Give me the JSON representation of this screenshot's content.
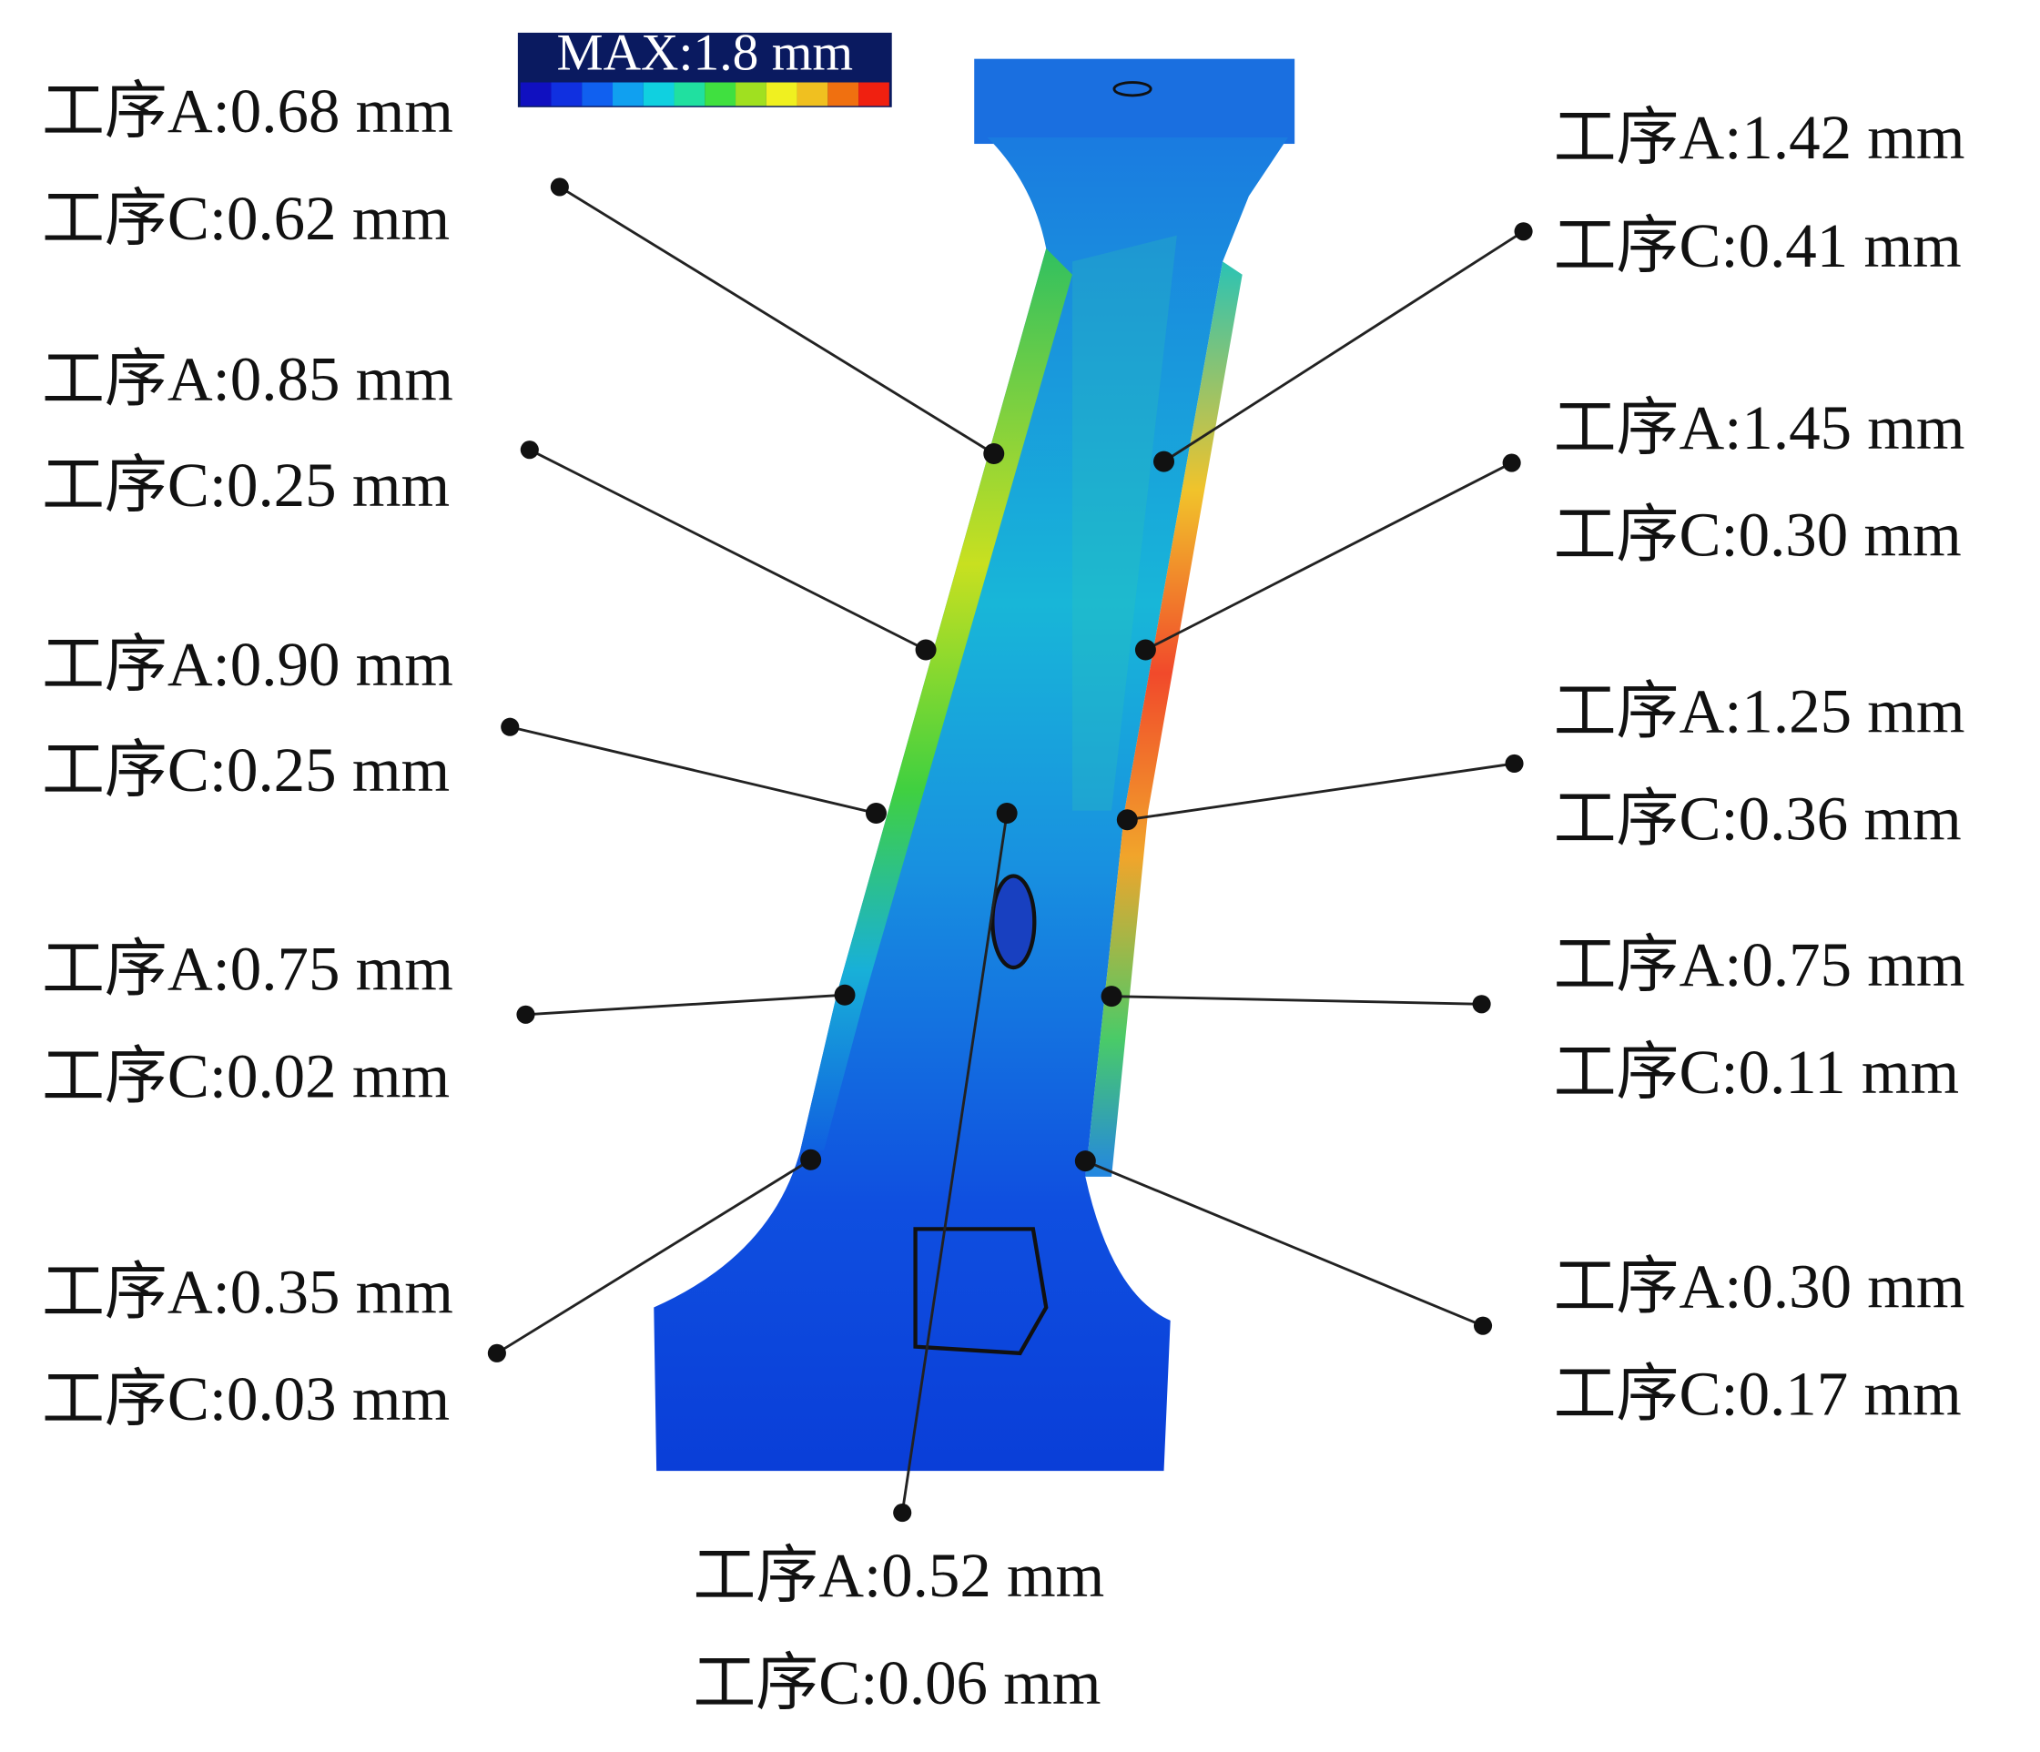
{
  "legend": {
    "title": "MAX:1.8 mm"
  },
  "annotations": [
    {
      "process_a": "工序A:0.68 mm",
      "process_c": "工序C:0.62 mm"
    },
    {
      "process_a": "工序A:0.85 mm",
      "process_c": "工序C:0.25 mm"
    },
    {
      "process_a": "工序A:0.90 mm",
      "process_c": "工序C:0.25 mm"
    },
    {
      "process_a": "工序A:0.75 mm",
      "process_c": "工序C:0.02 mm"
    },
    {
      "process_a": "工序A:0.35 mm",
      "process_c": "工序C:0.03 mm"
    },
    {
      "process_a": "工序A:1.42 mm",
      "process_c": "工序C:0.41 mm"
    },
    {
      "process_a": "工序A:1.45 mm",
      "process_c": "工序C:0.30 mm"
    },
    {
      "process_a": "工序A:1.25 mm",
      "process_c": "工序C:0.36 mm"
    },
    {
      "process_a": "工序A:0.75 mm",
      "process_c": "工序C:0.11 mm"
    },
    {
      "process_a": "工序A:0.30 mm",
      "process_c": "工序C:0.17 mm"
    },
    {
      "process_a": "工序A:0.52 mm",
      "process_c": "工序C:0.06 mm"
    }
  ]
}
